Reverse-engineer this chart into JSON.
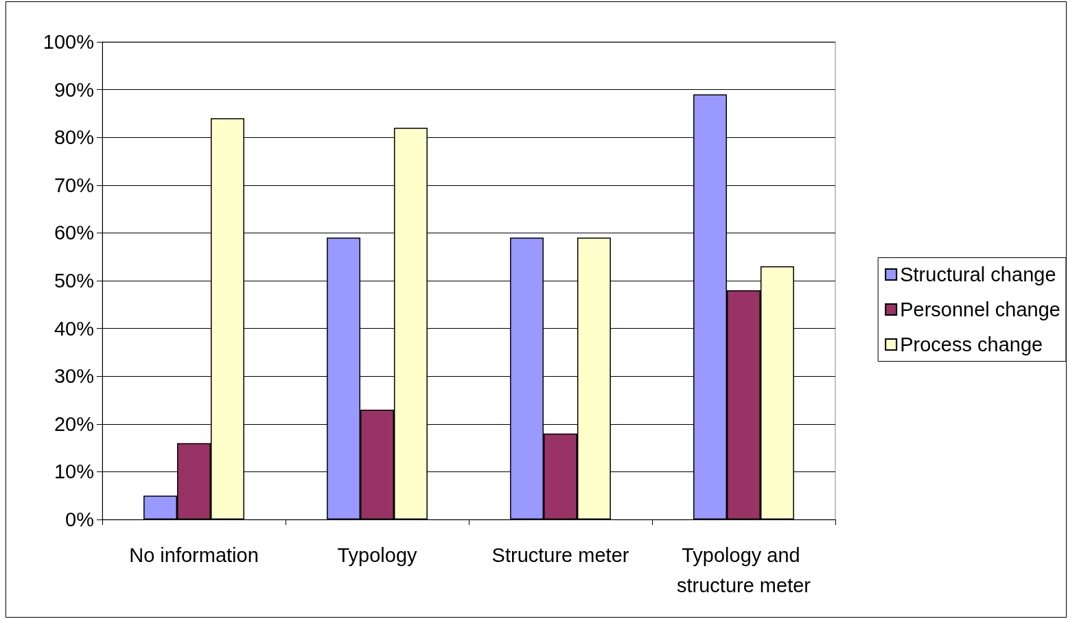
{
  "chart_data": {
    "type": "bar",
    "categories": [
      "No information",
      "Typology",
      "Structure meter",
      "Typology and structure meter"
    ],
    "series": [
      {
        "name": "Structural change",
        "color": "#9999ff",
        "values": [
          5,
          59,
          59,
          89
        ]
      },
      {
        "name": "Personnel change",
        "color": "#993366",
        "values": [
          16,
          23,
          18,
          48
        ]
      },
      {
        "name": "Process change",
        "color": "#ffffcc",
        "values": [
          84,
          82,
          59,
          53
        ]
      }
    ],
    "ylim": [
      0,
      100
    ],
    "yticks": [
      {
        "value": 0,
        "label": "0%"
      },
      {
        "value": 10,
        "label": "10%"
      },
      {
        "value": 20,
        "label": "20%"
      },
      {
        "value": 30,
        "label": "30%"
      },
      {
        "value": 40,
        "label": "40%"
      },
      {
        "value": 50,
        "label": "50%"
      },
      {
        "value": 60,
        "label": "60%"
      },
      {
        "value": 70,
        "label": "70%"
      },
      {
        "value": 80,
        "label": "80%"
      },
      {
        "value": 90,
        "label": "90%"
      },
      {
        "value": 100,
        "label": "100%"
      }
    ],
    "grid": "y",
    "legend": "right"
  }
}
